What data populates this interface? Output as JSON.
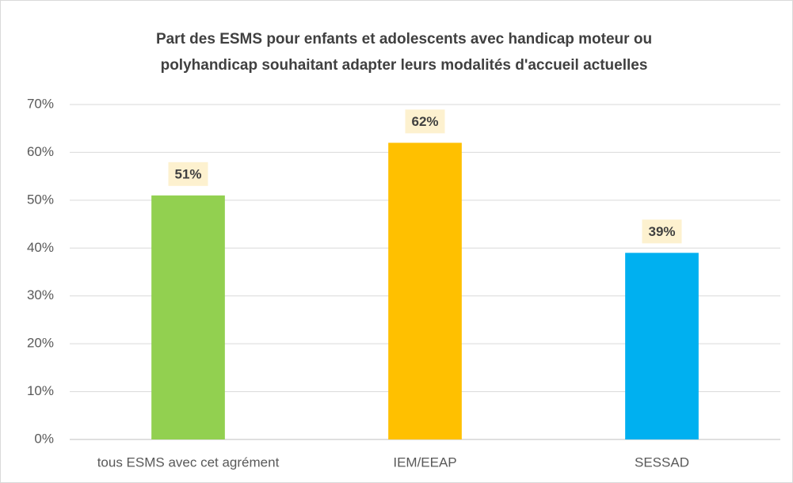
{
  "chart_data": {
    "type": "bar",
    "title": [
      "Part des ESMS pour enfants et adolescents avec handicap moteur ou",
      "polyhandicap souhaitant adapter leurs modalités d'accueil actuelles"
    ],
    "categories": [
      "tous ESMS avec cet agrément",
      "IEM/EEAP",
      "SESSAD"
    ],
    "values": [
      51,
      62,
      39
    ],
    "value_labels": [
      "51%",
      "62%",
      "39%"
    ],
    "colors": [
      "#92d050",
      "#ffc000",
      "#00b0f0"
    ],
    "ylim": [
      0,
      70
    ],
    "yticks": [
      {
        "value": 0,
        "label": "0%"
      },
      {
        "value": 10,
        "label": "10%"
      },
      {
        "value": 20,
        "label": "20%"
      },
      {
        "value": 30,
        "label": "30%"
      },
      {
        "value": 40,
        "label": "40%"
      },
      {
        "value": 50,
        "label": "50%"
      },
      {
        "value": 60,
        "label": "60%"
      },
      {
        "value": 70,
        "label": "70%"
      }
    ],
    "grid": true
  }
}
